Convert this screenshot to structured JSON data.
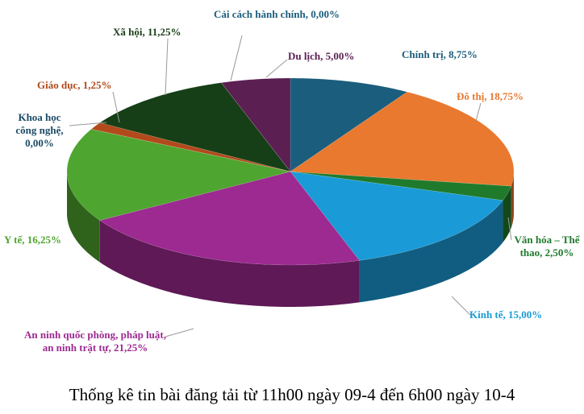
{
  "chart_data": {
    "type": "pie",
    "title": "Thống kê tin bài đăng tải từ 11h00 ngày 09-4 đến 6h00 ngày 10-4",
    "values": [
      8.75,
      18.75,
      2.5,
      15,
      21.25,
      16.25,
      0,
      1.25,
      11.25,
      0,
      5
    ],
    "value_labels": [
      "Chính trị, 8,75%",
      "Đô thị, 18,75%",
      "Văn hóa – Thể thao, 2,50%",
      "Kinh tế, 15,00%",
      "An ninh quốc phòng, pháp luật, an ninh trật tự, 21,25%",
      "Y tế, 16,25%",
      "Khoa học công nghệ, 0,00%",
      "Giáo dục, 1,25%",
      "Xã hội, 11,25%",
      "Cải cách hành chính, 0,00%",
      "Du lịch, 5,00%"
    ],
    "colors": [
      "#1b5d7c",
      "#e8792f",
      "#1f7a2c",
      "#1a9bd7",
      "#9c2a90",
      "#4ea52f",
      "#1c4a66",
      "#b24a1b",
      "#173f17",
      "#1b5d7c",
      "#5c1f52"
    ]
  }
}
